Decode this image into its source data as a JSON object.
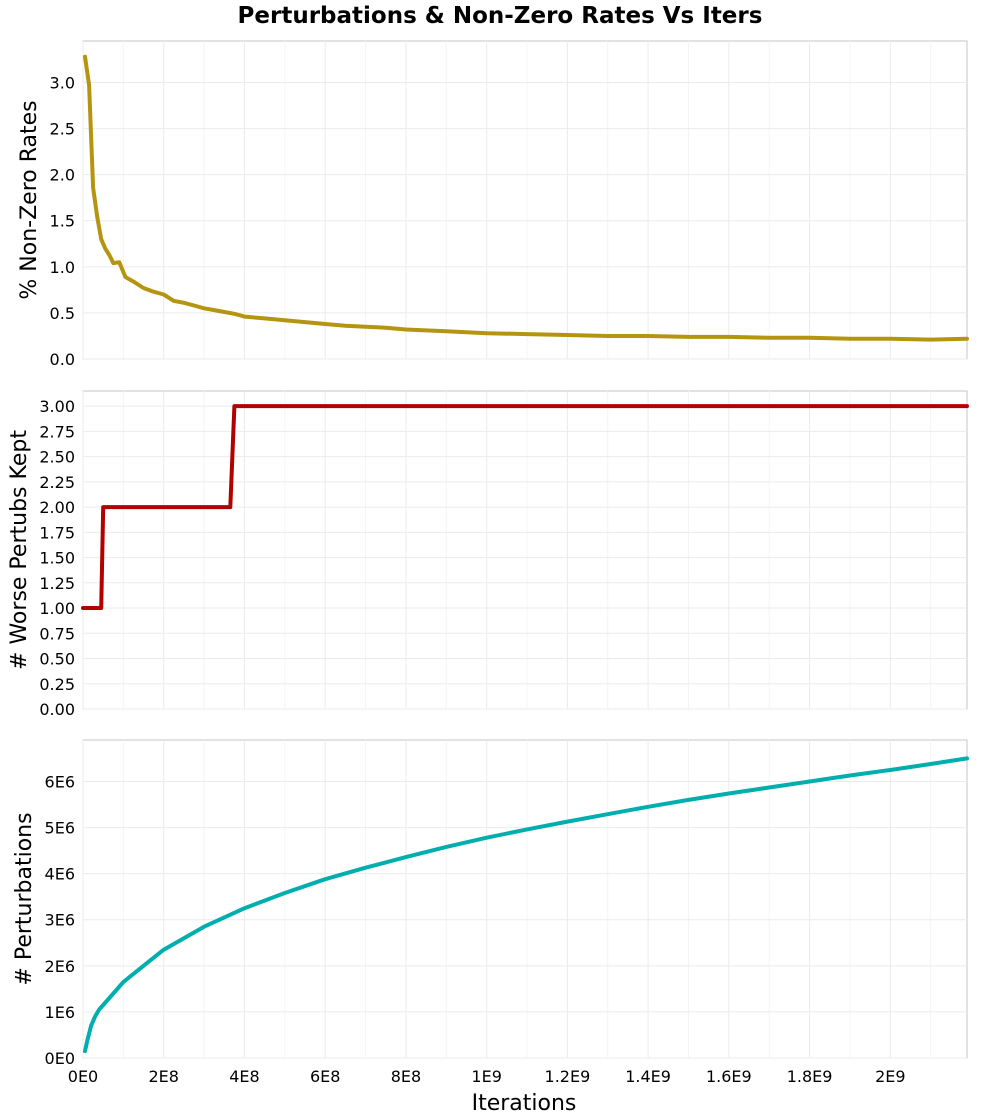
{
  "figure": {
    "title": "Perturbations & Non-Zero Rates Vs Iters"
  },
  "chart_data": [
    {
      "type": "line",
      "ylabel": "% Non-Zero Rates",
      "xlabel": "",
      "xlim": [
        0,
        2190000000
      ],
      "ylim": [
        0,
        3.45
      ],
      "yticks": [
        0.0,
        0.5,
        1.0,
        1.5,
        2.0,
        2.5,
        3.0
      ],
      "ytick_labels": [
        "0.0",
        "0.5",
        "1.0",
        "1.5",
        "2.0",
        "2.5",
        "3.0"
      ],
      "grid": true,
      "color": "#b59410",
      "x": [
        5000000,
        15000000,
        25000000,
        35000000,
        45000000,
        55000000,
        65000000,
        75000000,
        90000000,
        105000000,
        125000000,
        150000000,
        175000000,
        200000000,
        225000000,
        250000000,
        275000000,
        300000000,
        325000000,
        350000000,
        375000000,
        400000000,
        450000000,
        500000000,
        550000000,
        600000000,
        650000000,
        700000000,
        750000000,
        800000000,
        850000000,
        900000000,
        950000000,
        1000000000,
        1100000000,
        1200000000,
        1300000000,
        1400000000,
        1500000000,
        1600000000,
        1700000000,
        1800000000,
        1900000000,
        2000000000,
        2100000000,
        2190000000
      ],
      "values": [
        3.28,
        2.97,
        1.86,
        1.55,
        1.3,
        1.2,
        1.13,
        1.04,
        1.05,
        0.89,
        0.84,
        0.77,
        0.73,
        0.7,
        0.63,
        0.61,
        0.58,
        0.55,
        0.53,
        0.51,
        0.49,
        0.46,
        0.44,
        0.42,
        0.4,
        0.38,
        0.36,
        0.35,
        0.34,
        0.32,
        0.31,
        0.3,
        0.29,
        0.28,
        0.27,
        0.26,
        0.25,
        0.25,
        0.24,
        0.24,
        0.23,
        0.23,
        0.22,
        0.22,
        0.21,
        0.22
      ]
    },
    {
      "type": "line",
      "ylabel": "# Worse Pertubs Kept",
      "xlabel": "",
      "xlim": [
        0,
        2190000000
      ],
      "ylim": [
        0,
        3.15
      ],
      "yticks": [
        0.0,
        0.25,
        0.5,
        0.75,
        1.0,
        1.25,
        1.5,
        1.75,
        2.0,
        2.25,
        2.5,
        2.75,
        3.0
      ],
      "ytick_labels": [
        "0.00",
        "0.25",
        "0.50",
        "0.75",
        "1.00",
        "1.25",
        "1.50",
        "1.75",
        "2.00",
        "2.25",
        "2.50",
        "2.75",
        "3.00"
      ],
      "grid": true,
      "color": "#b30000",
      "x": [
        0,
        45000000,
        50000000,
        365000000,
        375000000,
        2190000000
      ],
      "values": [
        1,
        1,
        2,
        2,
        3,
        3
      ]
    },
    {
      "type": "line",
      "ylabel": "# Perturbations",
      "xlabel": "Iterations",
      "xlim": [
        0,
        2190000000
      ],
      "ylim": [
        0,
        6900000
      ],
      "yticks": [
        0,
        1000000,
        2000000,
        3000000,
        4000000,
        5000000,
        6000000
      ],
      "ytick_labels": [
        "0E0",
        "1E6",
        "2E6",
        "3E6",
        "4E6",
        "5E6",
        "6E6"
      ],
      "xticks": [
        0,
        200000000,
        400000000,
        600000000,
        800000000,
        1000000000,
        1200000000,
        1400000000,
        1600000000,
        1800000000,
        2000000000
      ],
      "xtick_labels": [
        "0E0",
        "2E8",
        "4E8",
        "6E8",
        "8E8",
        "1E9",
        "1.2E9",
        "1.4E9",
        "1.6E9",
        "1.8E9",
        "2E9"
      ],
      "grid": true,
      "color": "#00aeae",
      "x": [
        5000000,
        10000000,
        20000000,
        30000000,
        40000000,
        50000000,
        75000000,
        100000000,
        150000000,
        200000000,
        250000000,
        300000000,
        350000000,
        400000000,
        500000000,
        600000000,
        700000000,
        800000000,
        900000000,
        1000000000,
        1100000000,
        1200000000,
        1300000000,
        1400000000,
        1500000000,
        1600000000,
        1700000000,
        1800000000,
        1900000000,
        2000000000,
        2100000000,
        2190000000
      ],
      "values": [
        150000,
        350000,
        700000,
        900000,
        1050000,
        1150000,
        1400000,
        1650000,
        2000000,
        2350000,
        2600000,
        2850000,
        3050000,
        3250000,
        3580000,
        3880000,
        4130000,
        4360000,
        4580000,
        4780000,
        4960000,
        5130000,
        5290000,
        5450000,
        5600000,
        5740000,
        5870000,
        6000000,
        6130000,
        6250000,
        6380000,
        6500000
      ]
    }
  ]
}
